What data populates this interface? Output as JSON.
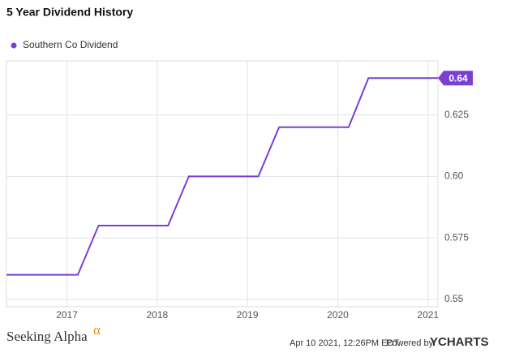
{
  "chart_data": {
    "type": "line",
    "title": "5 Year Dividend History",
    "x": [
      2016.33,
      2017.12,
      2017.35,
      2018.12,
      2018.35,
      2019.12,
      2019.35,
      2020.12,
      2020.34,
      2021.11
    ],
    "series": [
      {
        "name": "Southern Co Dividend",
        "color": "#7b3fd6",
        "values": [
          0.56,
          0.56,
          0.58,
          0.58,
          0.6,
          0.6,
          0.62,
          0.62,
          0.64,
          0.64
        ]
      }
    ],
    "xlim": [
      2016.33,
      2021.11
    ],
    "xticks": [
      2017,
      2018,
      2019,
      2020,
      2021
    ],
    "ylim": [
      0.547,
      0.647
    ],
    "yticks": [
      0.55,
      0.575,
      {
        "value": 0.6,
        "label": "0.60"
      },
      0.625
    ],
    "grid": true,
    "legend": "top-left"
  },
  "footer": {
    "timestamp": "Apr 10 2021, 12:26PM EDT.",
    "powered": "Powered by",
    "brand": "YCHARTS",
    "source": "Seeking Alpha",
    "source_mark": "α"
  }
}
